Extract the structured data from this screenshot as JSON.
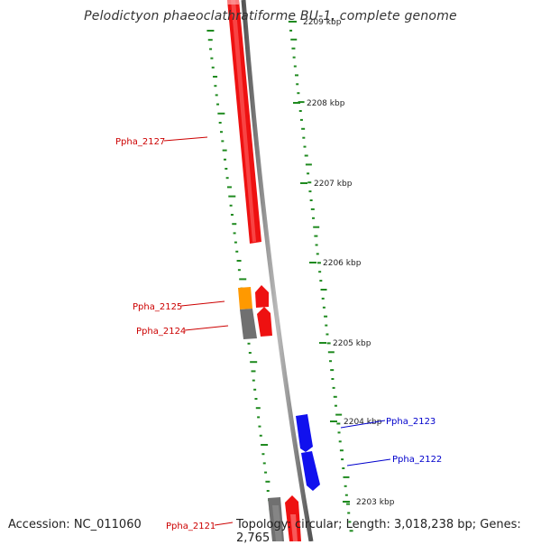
{
  "title": "Pelodictyon phaeoclathratiforme BU-1, complete genome",
  "footer": {
    "accession": "Accession: NC_011060",
    "topology": "Topology: circular; Length: 3,018,238 bp; Genes: 2,765"
  },
  "colors": {
    "backbone": "#8a8a8a",
    "gc_ticks": "#1f8a1f",
    "forward_red": "#ee1111",
    "orange": "#ff9900",
    "gray_gene": "#707070",
    "reverse_blue": "#1111ee",
    "label_red": "#cc0000",
    "label_blue": "#0000cc"
  },
  "scale_ticks": [
    {
      "label": "2209 kbp"
    },
    {
      "label": "2208 kbp"
    },
    {
      "label": "2207 kbp"
    },
    {
      "label": "2206 kbp"
    },
    {
      "label": "2205 kbp"
    },
    {
      "label": "2204 kbp"
    },
    {
      "label": "2203 kbp"
    }
  ],
  "gene_labels": [
    {
      "text": "Ppha_2127",
      "color": "#cc0000"
    },
    {
      "text": "Ppha_2125",
      "color": "#cc0000"
    },
    {
      "text": "Ppha_2124",
      "color": "#cc0000"
    },
    {
      "text": "Ppha_2123",
      "color": "#0000cc"
    },
    {
      "text": "Ppha_2122",
      "color": "#0000cc"
    },
    {
      "text": "Ppha_2121",
      "color": "#cc0000"
    }
  ]
}
